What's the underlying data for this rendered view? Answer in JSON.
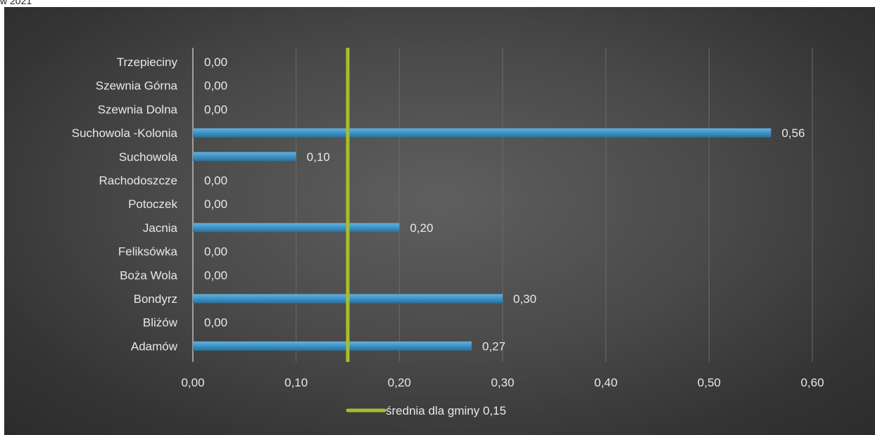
{
  "caption": "w 2021",
  "chart_data": {
    "type": "bar",
    "orientation": "horizontal",
    "categories": [
      "Trzepieciny",
      "Szewnia Górna",
      "Szewnia Dolna",
      "Suchowola -Kolonia",
      "Suchowola",
      "Rachodoszcze",
      "Potoczek",
      "Jacnia",
      "Feliksówka",
      "Boża Wola",
      "Bondyrz",
      "Bliżów",
      "Adamów"
    ],
    "values": [
      0.0,
      0.0,
      0.0,
      0.56,
      0.1,
      0.0,
      0.0,
      0.2,
      0.0,
      0.0,
      0.3,
      0.0,
      0.27
    ],
    "value_labels": [
      "0,00",
      "0,00",
      "0,00",
      "0,56",
      "0,10",
      "0,00",
      "0,00",
      "0,20",
      "0,00",
      "0,00",
      "0,30",
      "0,00",
      "0,27"
    ],
    "xlim": [
      0,
      0.6
    ],
    "x_ticks": [
      0,
      0.1,
      0.2,
      0.3,
      0.4,
      0.5,
      0.6
    ],
    "x_tick_labels": [
      "0,00",
      "0,10",
      "0,20",
      "0,30",
      "0,40",
      "0,50",
      "0,60"
    ],
    "reference_line": {
      "name": "średnia dla gminy 0,15",
      "value": 0.15
    },
    "grid": true,
    "legend_position": "bottom",
    "colors": {
      "bar": "#3d93c4",
      "reference_line": "#a7be2e",
      "grid": "#6a6a6a",
      "background": "#3f3f3f"
    }
  }
}
